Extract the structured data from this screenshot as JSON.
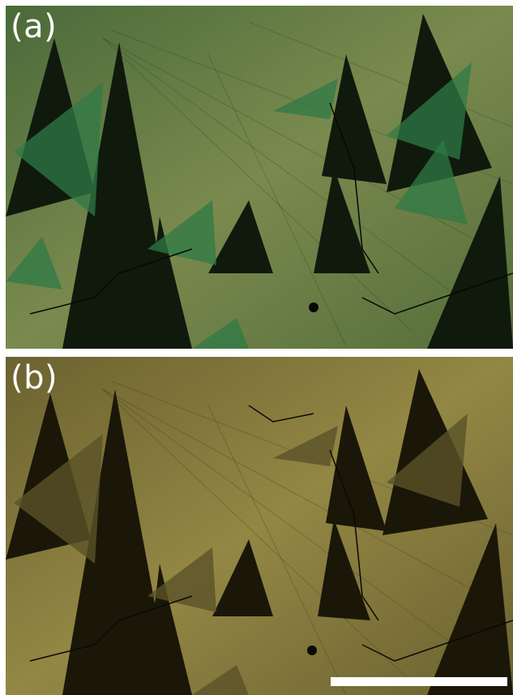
{
  "panels": [
    {
      "label": "(a)",
      "tint": "green",
      "colors": {
        "base": "#5b6f3c",
        "light": "#7f9254",
        "mid": "#3f6a3d",
        "dark": "#0f1a0d",
        "accent": "#2f7a45"
      }
    },
    {
      "label": "(b)",
      "tint": "olive",
      "colors": {
        "base": "#6e6530",
        "light": "#968a45",
        "mid": "#5a5228",
        "dark": "#1a1708",
        "accent": "#7d7236"
      }
    }
  ],
  "scale_bar": {
    "color": "#ffffff"
  }
}
